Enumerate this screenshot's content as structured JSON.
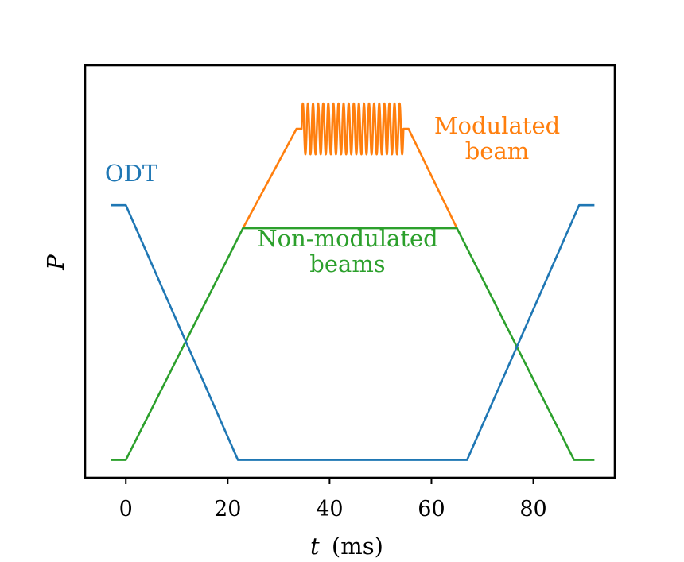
{
  "chart_data": {
    "type": "line",
    "xlabel_var": "t",
    "xlabel_unit": "(ms)",
    "ylabel": "P",
    "xlim": [
      -8,
      96
    ],
    "ylim": [
      -0.07,
      1.55
    ],
    "xticks": [
      0,
      20,
      40,
      60,
      80
    ],
    "yticks": [],
    "grid": false,
    "legend": "none",
    "series": [
      {
        "name": "ODT",
        "color": "#1f77b4",
        "x": [
          -3,
          0,
          22,
          67,
          89,
          92
        ],
        "y": [
          1.0,
          1.0,
          0.0,
          0.0,
          1.0,
          1.0
        ]
      },
      {
        "name": "Non-modulated beams",
        "color": "#2ca02c",
        "x": [
          -3,
          0,
          23,
          65,
          88,
          92
        ],
        "y": [
          0.0,
          0.0,
          0.91,
          0.91,
          0.0,
          0.0
        ]
      },
      {
        "name": "Modulated beam",
        "color": "#ff7f0e",
        "ramp_up": {
          "x": [
            23,
            33.5
          ],
          "y": [
            0.91,
            1.3
          ]
        },
        "plateau_level": 1.3,
        "modulation": {
          "x_start": 34.5,
          "x_end": 54.5,
          "cycles": 20,
          "amplitude": 0.1
        },
        "ramp_down": {
          "x": [
            55.5,
            65
          ],
          "y": [
            1.3,
            0.91
          ]
        }
      }
    ],
    "annotations": [
      {
        "series": "ODT",
        "lines": [
          "ODT"
        ]
      },
      {
        "series": "Modulated beam",
        "lines": [
          "Modulated",
          "beam"
        ]
      },
      {
        "series": "Non-modulated beams",
        "lines": [
          "Non-modulated",
          "beams"
        ]
      }
    ]
  }
}
